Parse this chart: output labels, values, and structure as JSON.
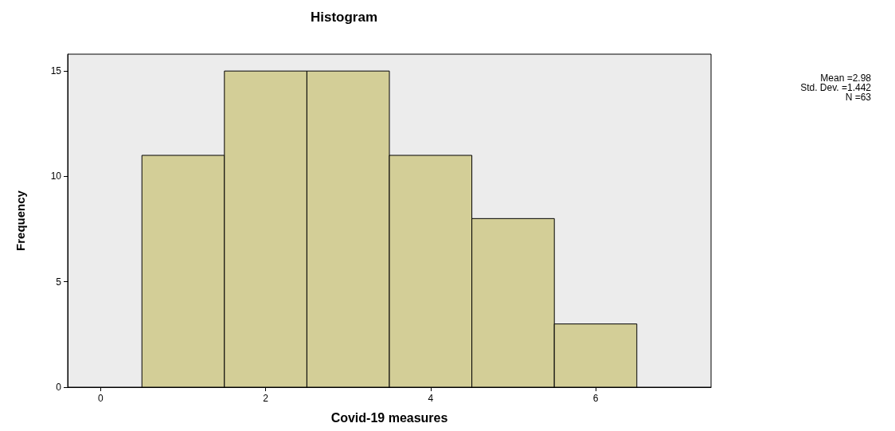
{
  "chart_data": {
    "type": "histogram",
    "title": "Histogram",
    "xlabel": "Covid-19 measures",
    "ylabel": "Frequency",
    "bins": [
      0.5,
      1.5,
      2.5,
      3.5,
      4.5,
      5.5,
      6.5
    ],
    "values": [
      11,
      15,
      15,
      11,
      8,
      3
    ],
    "color": "#d3ce97",
    "xlim": [
      -0.4,
      7.4
    ],
    "xticks": [
      0,
      2,
      4,
      6
    ],
    "ylim": [
      0,
      15.8
    ],
    "yticks": [
      0,
      5,
      10,
      15
    ],
    "annotations": [
      "Mean =2.98",
      "Std. Dev. =1.442",
      "N =63"
    ]
  }
}
